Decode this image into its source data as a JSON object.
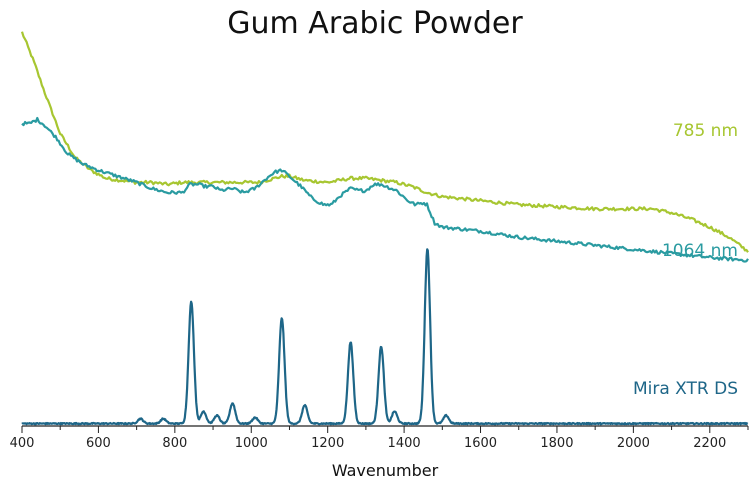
{
  "chart_data": {
    "type": "line",
    "title": "Gum Arabic Powder",
    "xlabel": "Wavenumber",
    "ylabel": "",
    "xlim": [
      400,
      2300
    ],
    "x_ticks": [
      400,
      600,
      800,
      1000,
      1200,
      1400,
      1600,
      1800,
      2000,
      2200
    ],
    "y_axis_visible": false,
    "grid": false,
    "legend": "inline labels at right end of each trace",
    "series": [
      {
        "name": "785 nm",
        "color": "#a7c631",
        "x": [
          400,
          430,
          460,
          500,
          540,
          580,
          620,
          660,
          700,
          740,
          780,
          820,
          860,
          900,
          940,
          980,
          1020,
          1060,
          1080,
          1100,
          1140,
          1200,
          1260,
          1300,
          1340,
          1380,
          1420,
          1460,
          1500,
          1600,
          1700,
          1800,
          1900,
          2000,
          2050,
          2100,
          2150,
          2200,
          2250,
          2300
        ],
        "y": [
          0.97,
          0.9,
          0.82,
          0.72,
          0.66,
          0.63,
          0.61,
          0.605,
          0.6,
          0.6,
          0.595,
          0.6,
          0.6,
          0.6,
          0.6,
          0.6,
          0.6,
          0.61,
          0.615,
          0.615,
          0.605,
          0.6,
          0.61,
          0.61,
          0.605,
          0.6,
          0.59,
          0.575,
          0.565,
          0.555,
          0.545,
          0.54,
          0.535,
          0.535,
          0.535,
          0.525,
          0.51,
          0.49,
          0.465,
          0.43
        ]
      },
      {
        "name": "1064 nm",
        "color": "#2a9ba1",
        "x": [
          400,
          420,
          440,
          460,
          490,
          520,
          560,
          600,
          650,
          700,
          740,
          780,
          820,
          840,
          860,
          880,
          900,
          920,
          950,
          980,
          1010,
          1040,
          1060,
          1080,
          1100,
          1130,
          1160,
          1190,
          1210,
          1230,
          1260,
          1280,
          1300,
          1320,
          1340,
          1380,
          1410,
          1430,
          1450,
          1460,
          1480,
          1500,
          1550,
          1600,
          1700,
          1800,
          1900,
          2000,
          2100,
          2200,
          2300
        ],
        "y": [
          0.745,
          0.745,
          0.755,
          0.74,
          0.71,
          0.67,
          0.645,
          0.63,
          0.615,
          0.6,
          0.585,
          0.575,
          0.575,
          0.595,
          0.595,
          0.59,
          0.59,
          0.58,
          0.585,
          0.575,
          0.585,
          0.61,
          0.625,
          0.63,
          0.615,
          0.59,
          0.56,
          0.545,
          0.545,
          0.565,
          0.585,
          0.58,
          0.58,
          0.595,
          0.595,
          0.58,
          0.555,
          0.545,
          0.55,
          0.545,
          0.5,
          0.49,
          0.485,
          0.48,
          0.465,
          0.455,
          0.445,
          0.435,
          0.425,
          0.415,
          0.408
        ]
      },
      {
        "name": "Mira XTR DS",
        "color": "#1e6688",
        "baseline": 0.006,
        "peaks": [
          {
            "x": 710,
            "height": 0.012
          },
          {
            "x": 770,
            "height": 0.012
          },
          {
            "x": 843,
            "height": 0.3
          },
          {
            "x": 875,
            "height": 0.03
          },
          {
            "x": 910,
            "height": 0.02
          },
          {
            "x": 951,
            "height": 0.05
          },
          {
            "x": 1010,
            "height": 0.015
          },
          {
            "x": 1080,
            "height": 0.26
          },
          {
            "x": 1140,
            "height": 0.045
          },
          {
            "x": 1260,
            "height": 0.2
          },
          {
            "x": 1340,
            "height": 0.19
          },
          {
            "x": 1375,
            "height": 0.03
          },
          {
            "x": 1461,
            "height": 0.43
          },
          {
            "x": 1510,
            "height": 0.02
          }
        ]
      }
    ]
  }
}
